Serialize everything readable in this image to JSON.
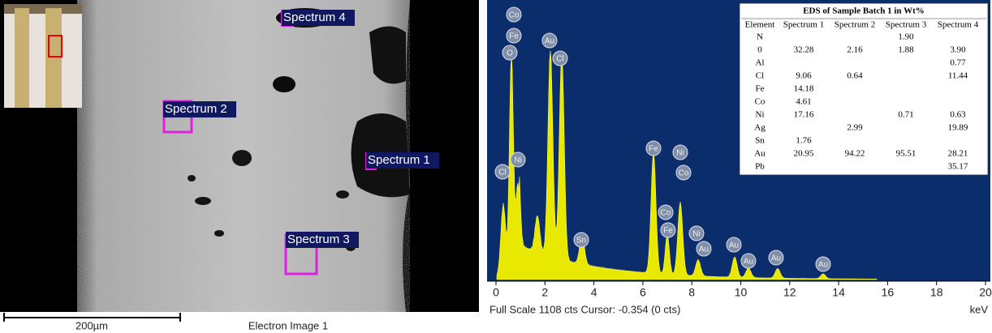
{
  "sem": {
    "labels": [
      "Spectrum 4",
      "Spectrum 2",
      "Spectrum 1",
      "Spectrum 3"
    ],
    "scale_bar": "200µm",
    "caption": "Electron Image 1"
  },
  "spectrum": {
    "peak_labels": [
      "Co",
      "Fe",
      "O",
      "Au",
      "Cl",
      "Cl",
      "Ni",
      "Sn",
      "Fe",
      "Ni",
      "Co",
      "Co",
      "Fe",
      "Ni",
      "Au",
      "Au",
      "Au",
      "Au",
      "Au"
    ],
    "xlim": [
      0,
      20
    ],
    "xticks": [
      0,
      2,
      4,
      6,
      8,
      10,
      12,
      14,
      16,
      18,
      20
    ],
    "footer": "Full Scale 1108 cts Cursor: -0.354 (0 cts)",
    "x_unit": "keV"
  },
  "table": {
    "title": "EDS of Sample Batch 1 in Wt%",
    "header": [
      "Element",
      "Spectrum 1",
      "Spectrum 2",
      "Spectrum 3",
      "Spectrum 4"
    ],
    "rows": [
      [
        "N",
        null,
        null,
        "1.90",
        null
      ],
      [
        "0",
        "32.28",
        "2.16",
        "1.88",
        "3.90"
      ],
      [
        "Al",
        null,
        null,
        null,
        "0.77"
      ],
      [
        "Cl",
        "9.06",
        "0.64",
        null,
        "11.44"
      ],
      [
        "Fe",
        "14.18",
        null,
        null,
        null
      ],
      [
        "Co",
        "4.61",
        null,
        null,
        null
      ],
      [
        "Ni",
        "17.16",
        null,
        "0.71",
        "0.63"
      ],
      [
        "Ag",
        null,
        "2.99",
        null,
        "19.89"
      ],
      [
        "Sn",
        "1.76",
        null,
        null,
        null
      ],
      [
        "Au",
        "20.95",
        "94.22",
        "95.51",
        "28.21"
      ],
      [
        "Pb",
        null,
        null,
        null,
        "35.17"
      ]
    ]
  }
}
